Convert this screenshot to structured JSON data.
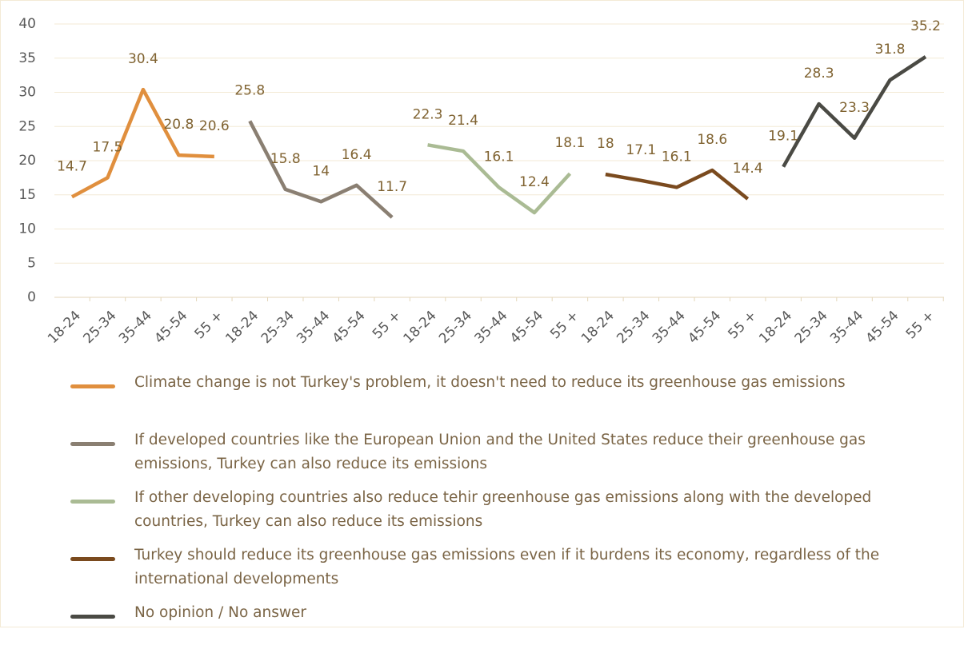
{
  "chart_data": {
    "type": "line",
    "categories": [
      "18-24",
      "25-34",
      "35-44",
      "45-54",
      "55 +",
      "18-24",
      "25-34",
      "35-44",
      "45-54",
      "55 +",
      "18-24",
      "25-34",
      "35-44",
      "45-54",
      "55 +",
      "18-24",
      "25-34",
      "35-44",
      "45-54",
      "55 +",
      "18-24",
      "25-34",
      "35-44",
      "45-54",
      "55 +"
    ],
    "series": [
      {
        "name": "Climate change is not Turkey's problem, it doesn't need to reduce its greenhouse gas emissions",
        "color": "#e08f3e",
        "values": [
          14.7,
          17.5,
          30.4,
          20.8,
          20.6,
          null,
          null,
          null,
          null,
          null,
          null,
          null,
          null,
          null,
          null,
          null,
          null,
          null,
          null,
          null,
          null,
          null,
          null,
          null,
          null
        ]
      },
      {
        "name": "If developed countries like the European Union and the United States reduce their greenhouse gas emissions, Turkey can also reduce its emissions",
        "color": "#8a7f72",
        "values": [
          null,
          null,
          null,
          null,
          null,
          25.8,
          15.8,
          14,
          16.4,
          11.7,
          null,
          null,
          null,
          null,
          null,
          null,
          null,
          null,
          null,
          null,
          null,
          null,
          null,
          null,
          null
        ]
      },
      {
        "name": "If other developing countries also reduce tehir greenhouse gas emissions along with the developed countries, Turkey can also reduce its emissions",
        "color": "#aabb94",
        "values": [
          null,
          null,
          null,
          null,
          null,
          null,
          null,
          null,
          null,
          null,
          22.3,
          21.4,
          16.1,
          12.4,
          18.1,
          null,
          null,
          null,
          null,
          null,
          null,
          null,
          null,
          null,
          null
        ]
      },
      {
        "name": "Turkey should reduce its greenhouse gas emissions even if it burdens its economy, regardless of the international developments",
        "color": "#7a4a1e",
        "values": [
          null,
          null,
          null,
          null,
          null,
          null,
          null,
          null,
          null,
          null,
          null,
          null,
          null,
          null,
          null,
          18,
          17.1,
          16.1,
          18.6,
          14.4,
          null,
          null,
          null,
          null,
          null
        ]
      },
      {
        "name": "No opinion / No answer",
        "color": "#4a4a44",
        "values": [
          null,
          null,
          null,
          null,
          null,
          null,
          null,
          null,
          null,
          null,
          null,
          null,
          null,
          null,
          null,
          null,
          null,
          null,
          null,
          null,
          19.1,
          28.3,
          23.3,
          31.8,
          35.2
        ]
      }
    ],
    "ylim": [
      0,
      40
    ],
    "yticks": [
      0,
      5,
      10,
      15,
      20,
      25,
      30,
      35,
      40
    ],
    "grid": true
  }
}
